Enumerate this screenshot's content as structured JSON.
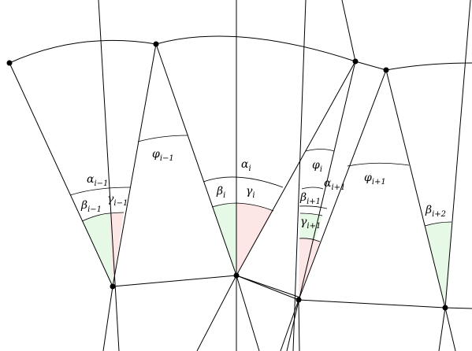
{
  "colors": {
    "beta_fill": "#e6f8e6",
    "gamma_fill": "#fde6e6",
    "stroke": "#000000"
  },
  "labels": {
    "alpha_im1": {
      "base": "α",
      "sub": "i−1"
    },
    "beta_im1": {
      "base": "β",
      "sub": "i−1"
    },
    "gamma_im1": {
      "base": "γ",
      "sub": "i−1"
    },
    "phi_im1": {
      "base": "φ",
      "sub": "i−1"
    },
    "alpha_i": {
      "base": "α",
      "sub": "i"
    },
    "beta_i": {
      "base": "β",
      "sub": "i"
    },
    "gamma_i": {
      "base": "γ",
      "sub": "i"
    },
    "phi_i": {
      "base": "φ",
      "sub": "i"
    },
    "alpha_ip1": {
      "base": "α",
      "sub": "i+1"
    },
    "beta_ip1": {
      "base": "β",
      "sub": "i+1"
    },
    "gamma_ip1": {
      "base": "γ",
      "sub": "i+1"
    },
    "phi_ip1": {
      "base": "φ",
      "sub": "i+1"
    },
    "beta_ip2": {
      "base": "β",
      "sub": "i+2"
    }
  }
}
